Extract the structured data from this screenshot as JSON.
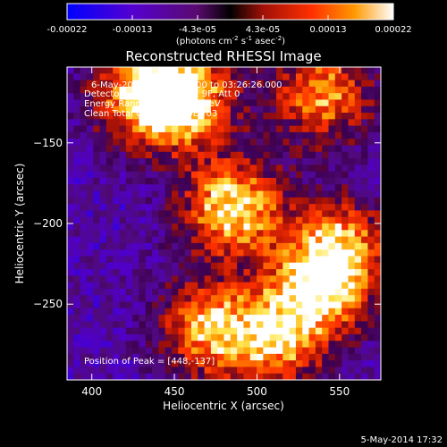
{
  "colorbar": {
    "ticks": [
      "-0.00022",
      "-0.00013",
      "-4.3e-05",
      "4.3e-05",
      "0.00013",
      "0.00022"
    ],
    "unit_main": "(photons cm",
    "unit_sup1": "-2",
    "unit_mid1": " s",
    "unit_sup2": "-1",
    "unit_mid2": " asec",
    "unit_sup3": "-2",
    "unit_end": ")"
  },
  "annotations": {
    "time_range": "6-May-2012 03:20:26.000 to 03:26:26.000",
    "detectors": "Detectors: 3F 5F 6F 7F 8F 9F, Att 0",
    "energy": "Energy Range: 20.0 - 50.0 keV",
    "clean": "Clean     Total Counts: 5.19E+03",
    "peak": "Position of Peak = [448,-137]"
  },
  "footer": {
    "timestamp": "5-May-2014 17:32"
  },
  "chart_data": {
    "type": "heatmap",
    "title": "Reconstructed RHESSI Image",
    "xlabel": "Heliocentric X (arcsec)",
    "ylabel": "Heliocentric Y (arcsec)",
    "xlim": [
      385,
      575
    ],
    "ylim": [
      -297,
      -103
    ],
    "x_ticks": [
      400,
      450,
      500,
      550
    ],
    "y_ticks": [
      -150,
      -200,
      -250
    ],
    "x_tick_labels": [
      "400",
      "450",
      "500",
      "550"
    ],
    "y_tick_labels": [
      "−150",
      "−200",
      "−250"
    ],
    "colorscale_range": [
      -0.00022,
      0.00022
    ],
    "peak_position": [
      448,
      -137
    ],
    "bright_sources": [
      {
        "x": 455,
        "y": -122,
        "level": 0.95
      },
      {
        "x": 485,
        "y": -190,
        "level": 1.0
      },
      {
        "x": 430,
        "y": -120,
        "level": 0.75
      },
      {
        "x": 540,
        "y": -120,
        "level": 0.8
      },
      {
        "x": 550,
        "y": -215,
        "level": 0.85
      },
      {
        "x": 535,
        "y": -245,
        "level": 0.75
      },
      {
        "x": 470,
        "y": -265,
        "level": 0.8
      },
      {
        "x": 510,
        "y": -275,
        "level": 0.7
      }
    ]
  }
}
